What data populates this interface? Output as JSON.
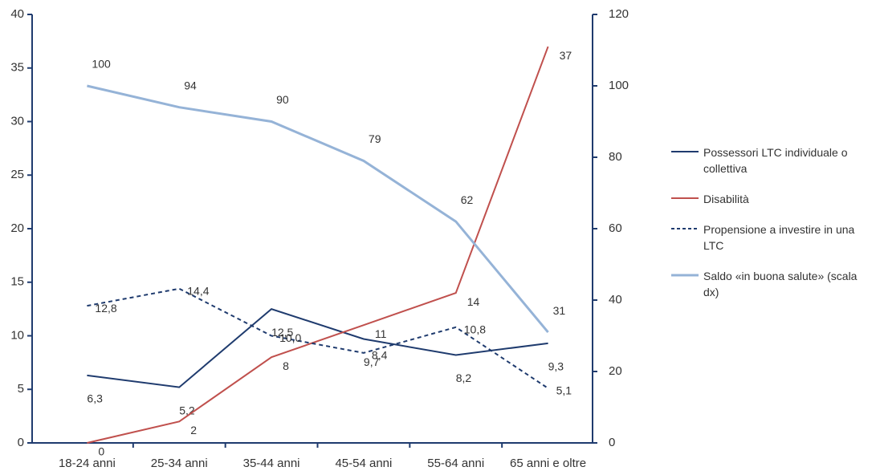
{
  "chart_data": {
    "type": "line",
    "categories": [
      "18-24 anni",
      "25-34 anni",
      "35-44 anni",
      "45-54 anni",
      "55-64 anni",
      "65 anni e oltre"
    ],
    "series": [
      {
        "name": "Possessori LTC individuale o collettiva",
        "color": "#1f3b6e",
        "dash": false,
        "values": [
          6.3,
          5.2,
          12.5,
          9.7,
          8.2,
          9.3
        ],
        "value_labels": [
          "6,3",
          "5,2",
          "12,5",
          "9,7",
          "8,2",
          "9,3"
        ]
      },
      {
        "name": "Disabilità",
        "color": "#c0504d",
        "dash": false,
        "values": [
          0,
          2,
          8,
          11,
          14,
          37
        ]
      },
      {
        "name": "Propensione a investire in una LTC",
        "color": "#1f3b6e",
        "dash": true,
        "values": [
          12.8,
          14.4,
          10.0,
          8.4,
          10.8,
          5.1
        ],
        "value_labels": [
          "12,8",
          "14,4",
          "10,0",
          "8,4",
          "10,8",
          "5,1"
        ]
      },
      {
        "name": "Saldo «in buona salute» (scala dx)",
        "color": "#95b3d7",
        "dash": false,
        "axis": "y2",
        "values": [
          100,
          94,
          90,
          79,
          62,
          31
        ]
      }
    ],
    "ylim": [
      0,
      40
    ],
    "yticks": [
      0,
      5,
      10,
      15,
      20,
      25,
      30,
      35,
      40
    ],
    "y2lim": [
      0,
      120
    ],
    "y2ticks": [
      0,
      20,
      40,
      60,
      80,
      100,
      120
    ],
    "grid": false,
    "legend": "right"
  }
}
